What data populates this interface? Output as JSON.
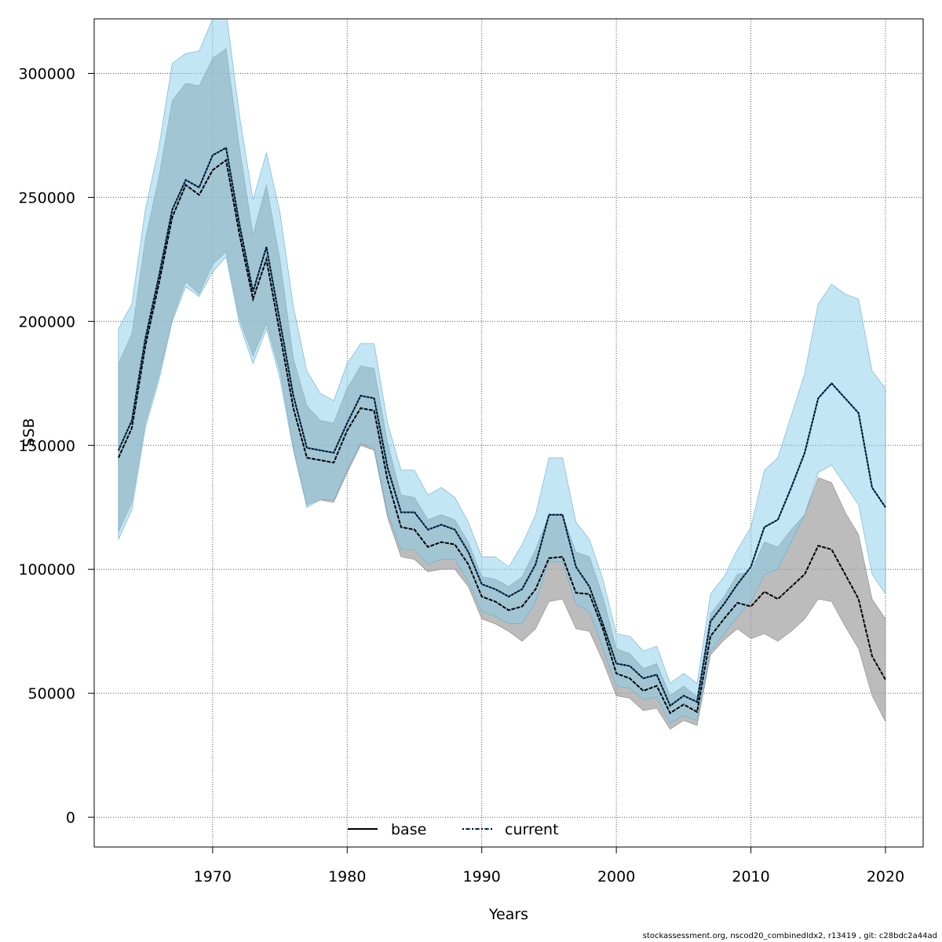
{
  "chart_data": {
    "type": "line",
    "title": "",
    "xlabel": "Years",
    "ylabel": "SSB",
    "xlim": [
      1961.2,
      2022.8
    ],
    "ylim": [
      -12000,
      322000
    ],
    "xticks": [
      1970,
      1980,
      1990,
      2000,
      2010,
      2020
    ],
    "xtick_labels": [
      "1970",
      "1980",
      "1990",
      "2000",
      "2010",
      "2020"
    ],
    "yticks": [
      0,
      50000,
      100000,
      150000,
      200000,
      250000,
      300000
    ],
    "ytick_labels": [
      "0",
      "50000",
      "100000",
      "150000",
      "200000",
      "250000",
      "300000"
    ],
    "grid": true,
    "legend_position": "bottom-center",
    "colors": {
      "base_band": "#a0a0a0",
      "current_band": "#87ceeb",
      "current_line": "#1f5f8a",
      "base_line": "#000000"
    },
    "x": [
      1963,
      1964,
      1965,
      1966,
      1967,
      1968,
      1969,
      1970,
      1971,
      1972,
      1973,
      1974,
      1975,
      1976,
      1977,
      1978,
      1979,
      1980,
      1981,
      1982,
      1983,
      1984,
      1985,
      1986,
      1987,
      1988,
      1989,
      1990,
      1991,
      1992,
      1993,
      1994,
      1995,
      1996,
      1997,
      1998,
      1999,
      2000,
      2001,
      2002,
      2003,
      2004,
      2005,
      2006,
      2007,
      2008,
      2009,
      2010,
      2011,
      2012,
      2013,
      2014,
      2015,
      2016,
      2017,
      2018,
      2019,
      2020
    ],
    "series": [
      {
        "name": "base",
        "style": "solid",
        "values": [
          145000,
          157000,
          190000,
          215000,
          242000,
          255000,
          251000,
          261000,
          265000,
          235000,
          209000,
          225000,
          195000,
          165000,
          145000,
          144000,
          143000,
          156000,
          165000,
          164000,
          136000,
          117000,
          116000,
          109000,
          111000,
          110000,
          102000,
          89000,
          87000,
          83500,
          85000,
          92000,
          104500,
          105000,
          90500,
          90000,
          76000,
          58000,
          56000,
          51000,
          53000,
          42000,
          45500,
          42500,
          73000,
          80000,
          86500,
          85000,
          91000,
          88000,
          93000,
          98000,
          109500,
          108000,
          98000,
          88000,
          65000,
          55500
        ],
        "lower": [
          115000,
          127000,
          159000,
          178000,
          201000,
          216000,
          211000,
          223000,
          228000,
          201000,
          186000,
          199000,
          180000,
          149000,
          126000,
          128000,
          127000,
          139000,
          150000,
          148000,
          121000,
          105000,
          104000,
          99000,
          100000,
          100000,
          93000,
          80000,
          78000,
          75000,
          71000,
          76000,
          87000,
          88000,
          76000,
          75000,
          63000,
          49000,
          48000,
          43000,
          44000,
          35500,
          39000,
          37000,
          65500,
          71500,
          76000,
          72000,
          74000,
          71000,
          75000,
          80000,
          88000,
          87000,
          77000,
          68000,
          49000,
          38500
        ],
        "upper": [
          183000,
          195000,
          233000,
          258000,
          289000,
          296000,
          295000,
          306000,
          310000,
          270000,
          235000,
          255000,
          225000,
          185000,
          166000,
          160000,
          159000,
          173000,
          182000,
          181000,
          151000,
          130000,
          129000,
          120000,
          122000,
          120000,
          111000,
          97000,
          96000,
          93000,
          97000,
          108000,
          122000,
          122000,
          107000,
          105000,
          89000,
          68000,
          66000,
          60000,
          62000,
          49000,
          53000,
          48500,
          82000,
          89000,
          98000,
          99000,
          111000,
          109000,
          116000,
          122000,
          137000,
          135000,
          123000,
          114000,
          88000,
          80000
        ]
      },
      {
        "name": "current",
        "style": "dotted",
        "values": [
          148000,
          160000,
          193000,
          218000,
          245000,
          257000,
          254000,
          267000,
          270000,
          239000,
          212000,
          230000,
          200000,
          170000,
          149000,
          148000,
          147000,
          159000,
          170000,
          169000,
          141000,
          123000,
          123000,
          116000,
          118000,
          116000,
          107000,
          94000,
          92000,
          89000,
          92000,
          102000,
          122000,
          122000,
          101000,
          93000,
          78000,
          62000,
          61000,
          56000,
          57500,
          45000,
          49000,
          46500,
          79000,
          86000,
          94000,
          101000,
          117000,
          120000,
          133000,
          147000,
          169000,
          175000,
          169000,
          163000,
          133000,
          125000
        ],
        "lower": [
          112000,
          124000,
          157000,
          176000,
          200000,
          214000,
          210000,
          220000,
          226000,
          199000,
          183000,
          197000,
          177000,
          148000,
          125000,
          128000,
          128000,
          140000,
          151000,
          149000,
          123000,
          108000,
          108000,
          102000,
          104000,
          104000,
          95000,
          83000,
          81000,
          78000,
          78000,
          87000,
          103000,
          103000,
          86000,
          83000,
          68000,
          53000,
          52000,
          47500,
          48500,
          38000,
          41000,
          39000,
          67000,
          74000,
          81000,
          87000,
          98000,
          100000,
          111000,
          122000,
          139000,
          142000,
          134000,
          126000,
          98000,
          90000
        ],
        "upper": [
          197000,
          207000,
          245000,
          270000,
          304000,
          308000,
          309000,
          322000,
          325000,
          283000,
          249000,
          268000,
          244000,
          206000,
          180000,
          171000,
          168000,
          183000,
          191000,
          191000,
          159000,
          140000,
          140000,
          130000,
          133000,
          129000,
          119000,
          105000,
          105000,
          101000,
          110000,
          122000,
          145000,
          145000,
          119000,
          112000,
          96000,
          74000,
          73000,
          67000,
          69000,
          54000,
          58000,
          54000,
          90000,
          97000,
          108000,
          117000,
          140000,
          145000,
          162000,
          179000,
          207000,
          215000,
          211000,
          209000,
          180000,
          173000
        ]
      }
    ]
  },
  "legend": [
    {
      "label": "base",
      "style": "solid"
    },
    {
      "label": "current",
      "style": "dotted"
    }
  ],
  "footer": "stockassessment.org, nscod20_combinedIdx2, r13419 , git: c28bdc2a44ad"
}
